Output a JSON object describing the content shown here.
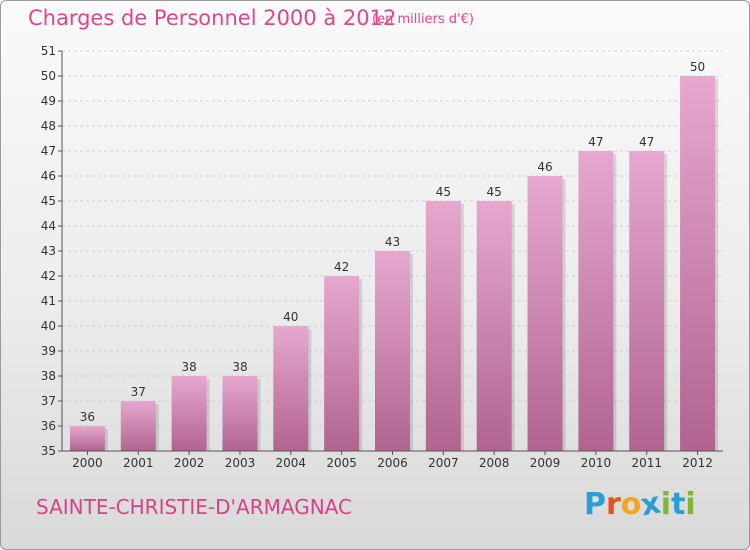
{
  "header": {
    "title": "Charges de Personnel 2000 à 2012",
    "subtitle": "(en milliers d'€)"
  },
  "footer": {
    "town": "SAINTE-CHRISTIE-D'ARMAGNAC",
    "logo_letters": [
      "P",
      "r",
      "o",
      "x",
      "i",
      "t",
      "i"
    ],
    "logo_colors": [
      "#2a9fd6",
      "#e8501c",
      "#f4a71d",
      "#2a9fd6",
      "#7fb732",
      "#2a9fd6",
      "#7fb732"
    ]
  },
  "colors": {
    "bar_top": "#e6a8cf",
    "bar_bottom": "#b0648f",
    "grid": "#d0d0d0",
    "axis": "#555555"
  },
  "chart_data": {
    "type": "bar",
    "title": "Charges de Personnel 2000 à 2012",
    "subtitle": "(en milliers d'€)",
    "xlabel": "",
    "ylabel": "",
    "categories": [
      "2000",
      "2001",
      "2002",
      "2003",
      "2004",
      "2005",
      "2006",
      "2007",
      "2008",
      "2009",
      "2010",
      "2011",
      "2012"
    ],
    "values": [
      36,
      37,
      38,
      38,
      40,
      42,
      43,
      45,
      45,
      46,
      47,
      47,
      50
    ],
    "ylim": [
      35,
      51
    ],
    "yticks": [
      35,
      36,
      37,
      38,
      39,
      40,
      41,
      42,
      43,
      44,
      45,
      46,
      47,
      48,
      49,
      50,
      51
    ],
    "grid": true,
    "data_labels": true
  }
}
